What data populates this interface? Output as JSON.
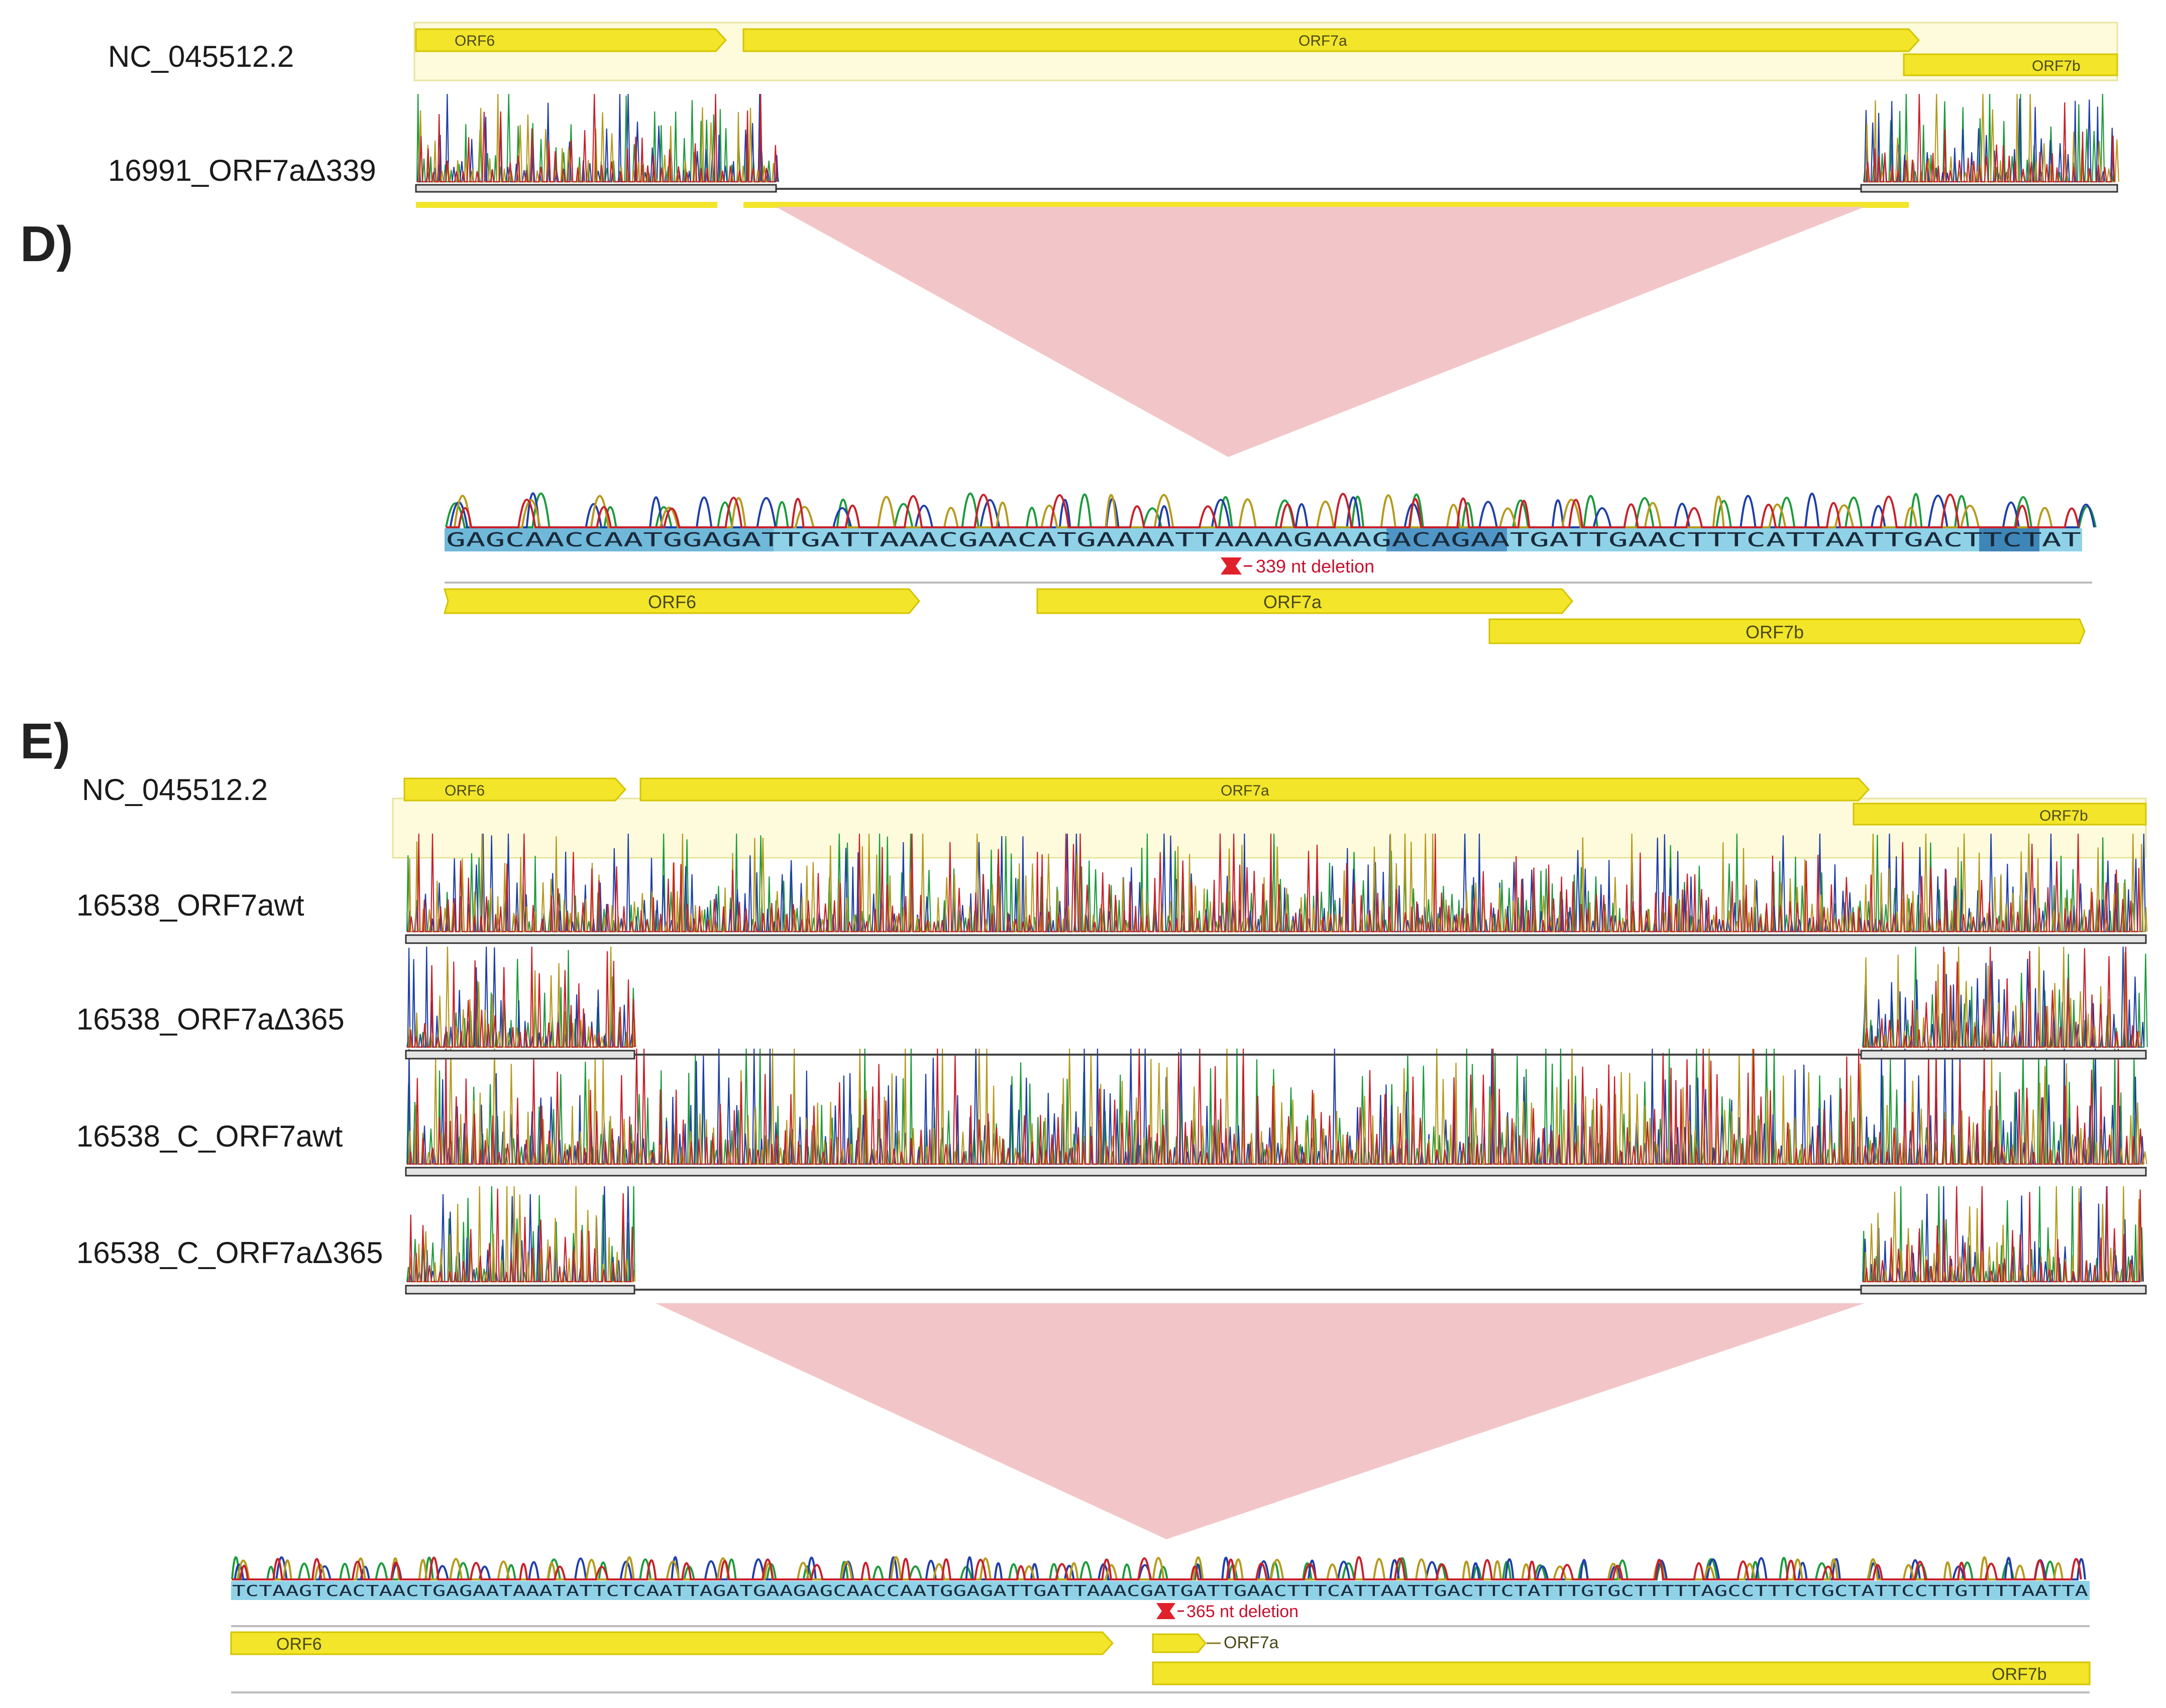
{
  "panel_d": {
    "label": "D)",
    "reference": {
      "name": "NC_045512.2",
      "features": [
        {
          "name": "ORF6"
        },
        {
          "name": "ORF7a"
        },
        {
          "name": "ORF7b"
        }
      ]
    },
    "sample": {
      "name": "16991_ORF7aΔ339"
    },
    "zoom": {
      "sequence": "GAGCAACCAATGGAGATTGATTAAACGAACATGAAAATTAAAAGAAAGACAGAATGATTGAACTTTCATTAATTGACTTCTAT",
      "deletion_label": "339 nt deletion",
      "features": [
        {
          "name": "ORF6"
        },
        {
          "name": "ORF7a"
        },
        {
          "name": "ORF7b"
        }
      ]
    }
  },
  "panel_e": {
    "label": "E)",
    "reference": {
      "name": "NC_045512.2",
      "features": [
        {
          "name": "ORF6"
        },
        {
          "name": "ORF7a"
        },
        {
          "name": "ORF7b"
        }
      ]
    },
    "samples": [
      {
        "name": "16538_ORF7awt",
        "full": true
      },
      {
        "name": "16538_ORF7aΔ365",
        "full": false
      },
      {
        "name": "16538_C_ORF7awt",
        "full": true
      },
      {
        "name": "16538_C_ORF7aΔ365",
        "full": false
      }
    ],
    "zoom": {
      "sequence": "TCTAAGTCACTAACTGAGAATAAATATTCTCAATTAGATGAAGAGCAACCAATGGAGATTGATTAAACGATGATTGAACTTTCATTAATTGACTTCTATTTGTGCTTTTTAGCCTTTCTGCTATTCCTTGTTTTAATTA",
      "deletion_label": "365 nt deletion",
      "features": [
        {
          "name": "ORF6"
        },
        {
          "name": "ORF7a"
        },
        {
          "name": "ORF7b"
        }
      ]
    }
  },
  "colors": {
    "feature_fill": "#f2e52a",
    "feature_stroke": "#d4c400",
    "reference_band": "#fdfbdc",
    "funnel": "#f2c6c8",
    "sequence_band": "#8fd2e8",
    "sequence_band_dark": "#3f86b8",
    "deletion_marker": "#e0202a",
    "trace_A": "#1c9b3c",
    "trace_C": "#1f3fa8",
    "trace_G": "#b59a1c",
    "trace_T": "#c8202a"
  }
}
